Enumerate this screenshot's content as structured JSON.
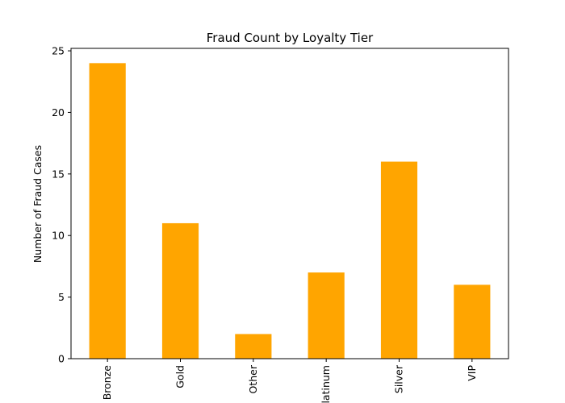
{
  "chart_data": {
    "type": "bar",
    "title": "Fraud Count by Loyalty Tier",
    "xlabel": "",
    "ylabel": "Number of Fraud Cases",
    "categories": [
      "Bronze",
      "Gold",
      "Other",
      "Platinum",
      "Silver",
      "VIP"
    ],
    "values": [
      24,
      11,
      2,
      7,
      16,
      6
    ],
    "ylim": [
      0,
      25.2
    ],
    "yticks": [
      0,
      5,
      10,
      15,
      20,
      25
    ],
    "bar_color": "#ffa500",
    "grid": false,
    "legend": "none"
  }
}
